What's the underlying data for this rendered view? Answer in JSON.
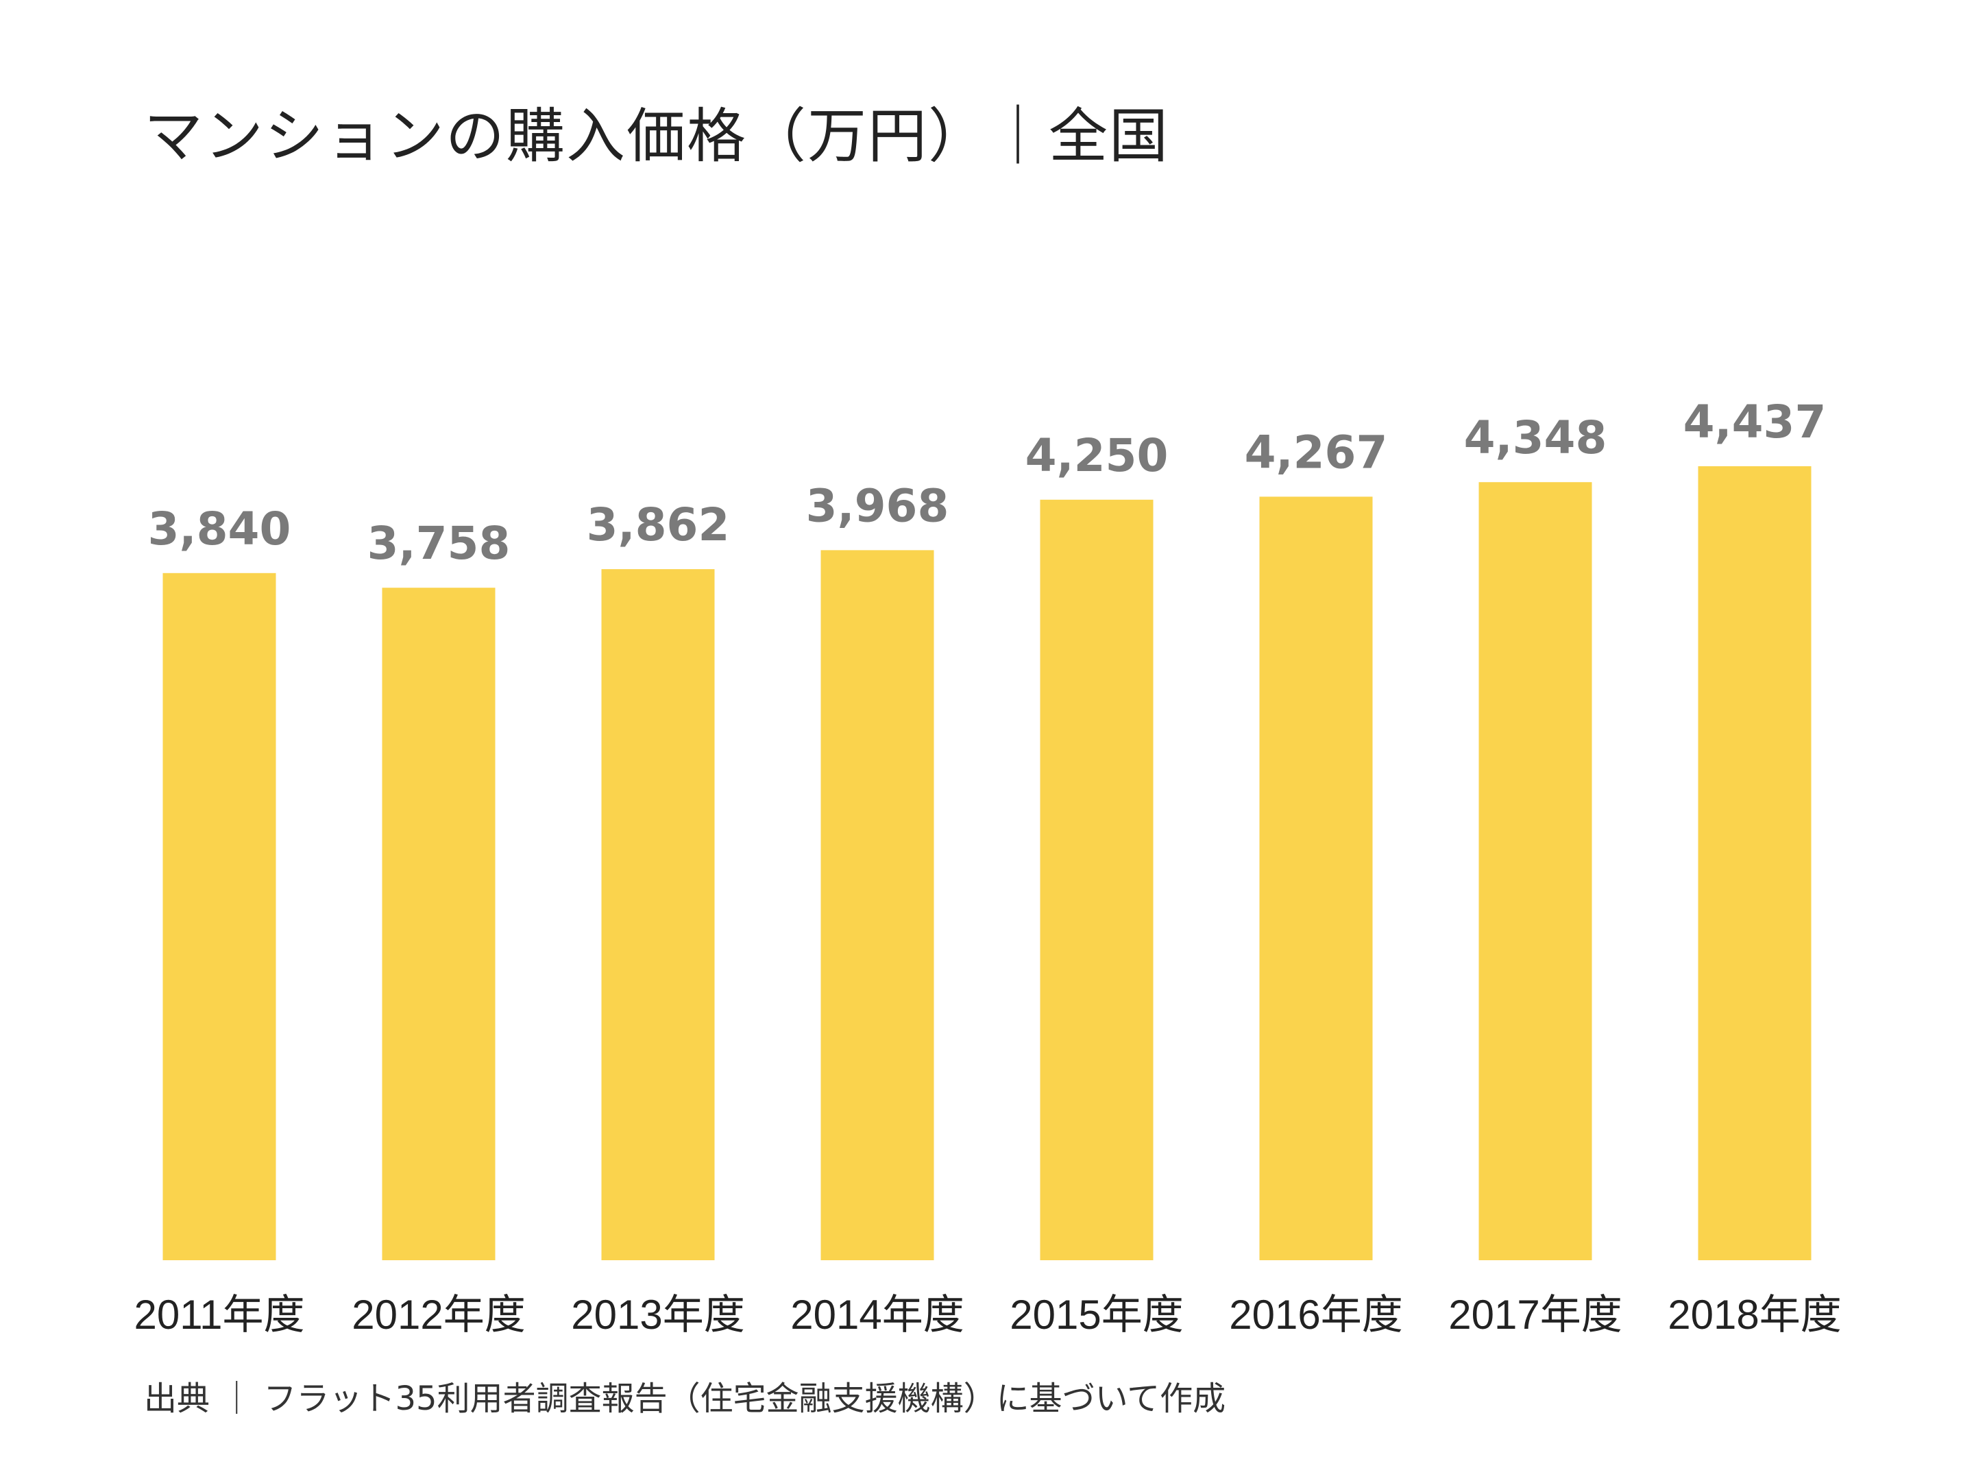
{
  "title": "マンションの購入価格（万円）｜全国",
  "source": "出典 ｜ フラット35利用者調査報告（住宅金融支援機構）に基づいて作成",
  "colors": {
    "bar": "#FAD34D",
    "value_label": "#7a7a7a",
    "text": "#222222"
  },
  "chart_data": {
    "type": "bar",
    "categories": [
      "2011年度",
      "2012年度",
      "2013年度",
      "2014年度",
      "2015年度",
      "2016年度",
      "2017年度",
      "2018年度"
    ],
    "values": [
      3840,
      3758,
      3862,
      3968,
      4250,
      4267,
      4348,
      4437
    ],
    "value_labels": [
      "3,840",
      "3,758",
      "3,862",
      "3,968",
      "4,250",
      "4,267",
      "4,348",
      "4,437"
    ],
    "title": "マンションの購入価格（万円）｜全国",
    "xlabel": "",
    "ylabel": "",
    "ylim": [
      0,
      4437
    ],
    "grid": false,
    "legend": "none"
  }
}
